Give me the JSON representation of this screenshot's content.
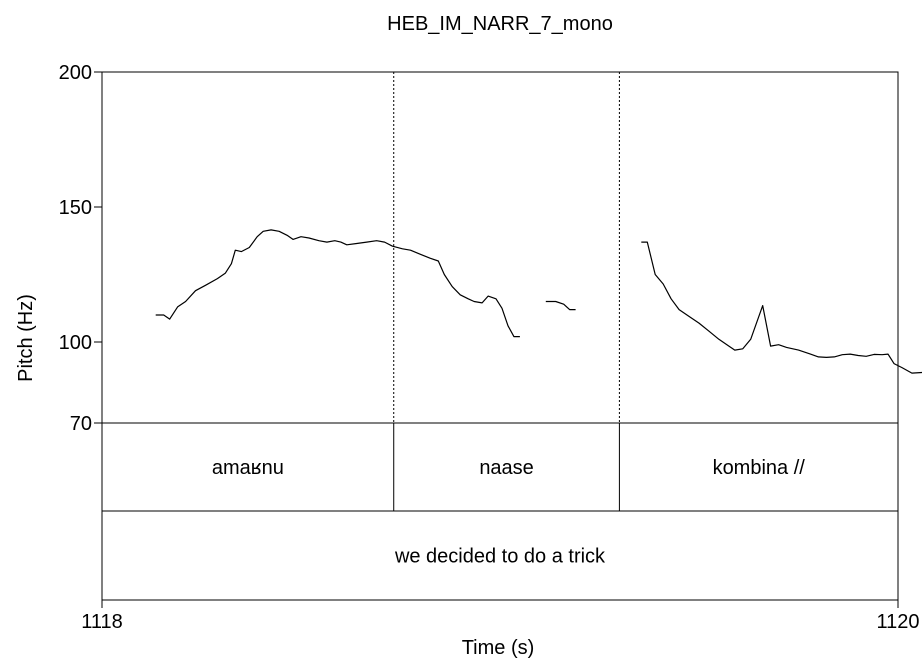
{
  "chart_data": {
    "type": "line",
    "title": "HEB_IM_NARR_7_mono",
    "xlabel": "Time (s)",
    "ylabel": "Pitch (Hz)",
    "xlim": [
      1118,
      1120
    ],
    "ylim": [
      70,
      200
    ],
    "x_ticks": [
      "1118",
      "1120"
    ],
    "y_ticks": [
      {
        "value": 200,
        "label": "200"
      },
      {
        "value": 150,
        "label": "150"
      },
      {
        "value": 100,
        "label": "100"
      },
      {
        "value": 70,
        "label": "70"
      }
    ],
    "boundaries": [
      1118.733,
      1119.3
    ],
    "series": [
      {
        "points": [
          [
            1118.135,
            110
          ],
          [
            1118.155,
            110
          ],
          [
            1118.17,
            108.5
          ],
          [
            1118.19,
            113
          ],
          [
            1118.21,
            115
          ],
          [
            1118.235,
            119
          ],
          [
            1118.26,
            121
          ],
          [
            1118.29,
            123.5
          ],
          [
            1118.31,
            125.5
          ],
          [
            1118.325,
            129
          ],
          [
            1118.335,
            134
          ],
          [
            1118.35,
            133.5
          ],
          [
            1118.37,
            135
          ],
          [
            1118.39,
            139
          ],
          [
            1118.405,
            141
          ],
          [
            1118.425,
            141.5
          ],
          [
            1118.445,
            141
          ],
          [
            1118.465,
            139.5
          ],
          [
            1118.48,
            138
          ],
          [
            1118.5,
            139
          ],
          [
            1118.52,
            138.5
          ],
          [
            1118.545,
            137.5
          ],
          [
            1118.565,
            137
          ],
          [
            1118.585,
            137.5
          ],
          [
            1118.6,
            137
          ],
          [
            1118.615,
            136
          ],
          [
            1118.64,
            136.5
          ],
          [
            1118.665,
            137
          ],
          [
            1118.69,
            137.5
          ],
          [
            1118.71,
            137
          ],
          [
            1118.73,
            135.5
          ],
          [
            1118.755,
            134.5
          ],
          [
            1118.775,
            134
          ],
          [
            1118.8,
            132.5
          ],
          [
            1118.825,
            131
          ],
          [
            1118.845,
            130
          ],
          [
            1118.86,
            125
          ],
          [
            1118.88,
            120.5
          ],
          [
            1118.9,
            117.5
          ],
          [
            1118.92,
            116
          ],
          [
            1118.935,
            115
          ],
          [
            1118.955,
            114.5
          ],
          [
            1118.97,
            117
          ],
          [
            1118.99,
            116
          ],
          [
            1119.005,
            112.5
          ],
          [
            1119.02,
            106
          ],
          [
            1119.035,
            102
          ],
          [
            1119.05,
            102
          ]
        ]
      },
      {
        "points": [
          [
            1119.115,
            115
          ],
          [
            1119.14,
            115
          ],
          [
            1119.16,
            114
          ],
          [
            1119.175,
            112
          ],
          [
            1119.19,
            112
          ]
        ]
      },
      {
        "points": [
          [
            1119.355,
            137
          ],
          [
            1119.37,
            137
          ],
          [
            1119.39,
            125
          ],
          [
            1119.41,
            121.5
          ],
          [
            1119.43,
            116
          ],
          [
            1119.45,
            112
          ],
          [
            1119.475,
            109.5
          ],
          [
            1119.5,
            107
          ],
          [
            1119.525,
            104
          ],
          [
            1119.55,
            101
          ],
          [
            1119.575,
            98.5
          ],
          [
            1119.59,
            97
          ],
          [
            1119.61,
            97.5
          ],
          [
            1119.63,
            101
          ],
          [
            1119.66,
            113.5
          ],
          [
            1119.68,
            98.5
          ],
          [
            1119.7,
            99
          ],
          [
            1119.72,
            98
          ],
          [
            1119.75,
            97
          ],
          [
            1119.78,
            95.5
          ],
          [
            1119.8,
            94.5
          ],
          [
            1119.82,
            94.3
          ],
          [
            1119.84,
            94.5
          ],
          [
            1119.86,
            95.3
          ],
          [
            1119.88,
            95.5
          ],
          [
            1119.9,
            95
          ],
          [
            1119.92,
            94.7
          ],
          [
            1119.94,
            95.4
          ],
          [
            1119.96,
            95.3
          ],
          [
            1119.975,
            95.5
          ],
          [
            1119.99,
            92
          ],
          [
            1120.01,
            90.5
          ],
          [
            1120.035,
            88.5
          ],
          [
            1120.06,
            88.7
          ],
          [
            1120.08,
            88.5
          ]
        ]
      }
    ],
    "tiers": [
      {
        "intervals": [
          {
            "text": "amaʁnu",
            "start": 1118,
            "end": 1118.733
          },
          {
            "text": "naase",
            "start": 1118.733,
            "end": 1119.3
          },
          {
            "text": "kombina //",
            "start": 1119.3,
            "end": 1120
          }
        ]
      },
      {
        "intervals": [
          {
            "text": "we decided to do a trick",
            "start": 1118,
            "end": 1120
          }
        ]
      }
    ]
  }
}
